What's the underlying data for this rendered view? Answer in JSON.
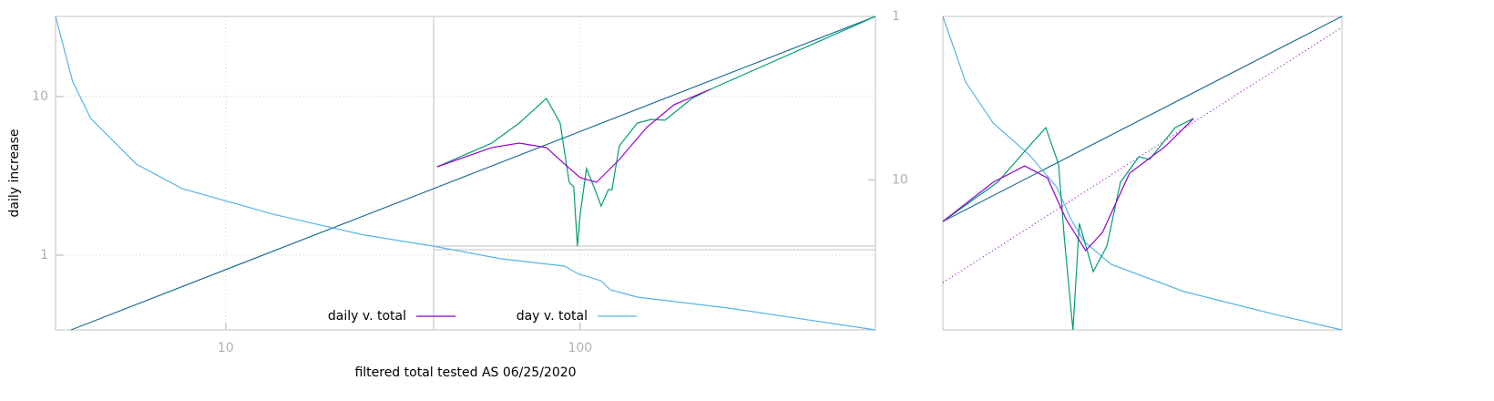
{
  "chart_data": [
    {
      "type": "line",
      "x_label": "filtered total tested AS 06/25/2020",
      "y_label": "daily increase",
      "log_x": true,
      "log_y": true,
      "xlim": [
        3.31,
        681
      ],
      "ylim": [
        0.338,
        32
      ],
      "xticks": [
        10,
        100
      ],
      "yticks": [
        1,
        10
      ],
      "y2lim": [
        83,
        1
      ],
      "y2ticks": [
        1,
        10
      ],
      "grid": true,
      "legend": "bottom",
      "series": [
        {
          "color": "#1f6f94",
          "x": [
            3.66,
            681
          ],
          "values": [
            0.338,
            32
          ]
        },
        {
          "color": "#009e73",
          "x": [
            39.5,
            56.3,
            67.3,
            80.3,
            87.8,
            93.1,
            95.9,
            98.2,
            100,
            104.2,
            109.3,
            114.6,
            120.1,
            123,
            129,
            145,
            158.7,
            173.4,
            207,
            233,
            681
          ],
          "values": [
            3.61,
            5.09,
            6.81,
            9.74,
            6.81,
            2.88,
            2.7,
            1.14,
            1.81,
            3.52,
            2.7,
            2.04,
            2.59,
            2.59,
            4.9,
            6.81,
            7.18,
            7.09,
            9.74,
            11.1,
            32
          ]
        },
        {
          "name": "daily v. total",
          "color": "#9400d3",
          "x": [
            39.5,
            56.3,
            67.3,
            80.3,
            90.4,
            100,
            111.2,
            129,
            154,
            184,
            233
          ],
          "values": [
            3.61,
            4.77,
            5.09,
            4.77,
            3.75,
            3.08,
            2.88,
            4.01,
            6.38,
            8.88,
            11.1
          ]
        },
        {
          "name": "day v. total",
          "color": "#56b4e9",
          "x": [
            3.31,
            3.7,
            4.16,
            5.6,
            7.53,
            13.6,
            24.6,
            38.6,
            59.8,
            90.4,
            98.2,
            114.6,
            121.6,
            145,
            262,
            681
          ],
          "values": [
            32,
            12.4,
            7.28,
            3.75,
            2.63,
            1.81,
            1.34,
            1.14,
            0.948,
            0.853,
            0.767,
            0.69,
            0.605,
            0.544,
            0.464,
            0.338
          ]
        }
      ]
    },
    {
      "type": "line",
      "xlim": [
        0,
        1
      ],
      "ylim": [
        0,
        1
      ],
      "series": [
        {
          "color": "#1f6f94",
          "x": [
            0,
            1
          ],
          "values": [
            0.346,
            1
          ]
        },
        {
          "color": "#9400d3",
          "style": "dotted",
          "x": [
            0,
            1
          ],
          "values": [
            0.151,
            0.965
          ]
        },
        {
          "color": "#56b4e9",
          "x": [
            0,
            0.057,
            0.126,
            0.217,
            0.285,
            0.32,
            0.354,
            0.422,
            0.605,
            0.833,
            1
          ],
          "values": [
            1,
            0.791,
            0.66,
            0.558,
            0.456,
            0.355,
            0.282,
            0.209,
            0.122,
            0.049,
            0
          ]
        },
        {
          "color": "#009e73",
          "x": [
            0,
            0.137,
            0.217,
            0.258,
            0.29,
            0.304,
            0.326,
            0.342,
            0.377,
            0.411,
            0.445,
            0.491,
            0.518,
            0.582,
            0.628
          ],
          "values": [
            0.346,
            0.471,
            0.587,
            0.645,
            0.529,
            0.297,
            0,
            0.34,
            0.186,
            0.267,
            0.471,
            0.552,
            0.544,
            0.645,
            0.674
          ]
        },
        {
          "color": "#9400d3",
          "x": [
            0,
            0.126,
            0.205,
            0.262,
            0.308,
            0.358,
            0.4,
            0.468,
            0.559,
            0.628
          ],
          "values": [
            0.346,
            0.471,
            0.523,
            0.485,
            0.355,
            0.253,
            0.311,
            0.5,
            0.587,
            0.674
          ]
        }
      ]
    }
  ]
}
